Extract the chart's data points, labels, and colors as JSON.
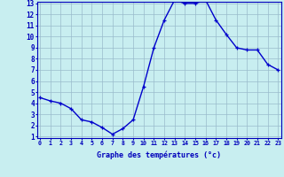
{
  "hours": [
    0,
    1,
    2,
    3,
    4,
    5,
    6,
    7,
    8,
    9,
    10,
    11,
    12,
    13,
    14,
    15,
    16,
    17,
    18,
    19,
    20,
    21,
    22,
    23
  ],
  "temps": [
    4.5,
    4.2,
    4.0,
    3.5,
    2.5,
    2.3,
    1.8,
    1.2,
    1.7,
    2.5,
    5.5,
    9.0,
    11.5,
    13.3,
    13.0,
    13.0,
    13.3,
    11.5,
    10.2,
    9.0,
    8.8,
    8.8,
    7.5,
    7.0
  ],
  "line_color": "#0000cc",
  "bg_color": "#c8eef0",
  "grid_color": "#99bbcc",
  "axis_color": "#0000bb",
  "xlabel": "Graphe des températures (°c)",
  "ylim_min": 1,
  "ylim_max": 13,
  "xlim_min": 0,
  "xlim_max": 23,
  "yticks": [
    1,
    2,
    3,
    4,
    5,
    6,
    7,
    8,
    9,
    10,
    11,
    12,
    13
  ],
  "xticks": [
    0,
    1,
    2,
    3,
    4,
    5,
    6,
    7,
    8,
    9,
    10,
    11,
    12,
    13,
    14,
    15,
    16,
    17,
    18,
    19,
    20,
    21,
    22,
    23
  ],
  "marker": "+",
  "marker_size": 3.5,
  "line_width": 1.0,
  "xlabel_fontsize": 6.0,
  "tick_fontsize_x": 4.8,
  "tick_fontsize_y": 5.5
}
